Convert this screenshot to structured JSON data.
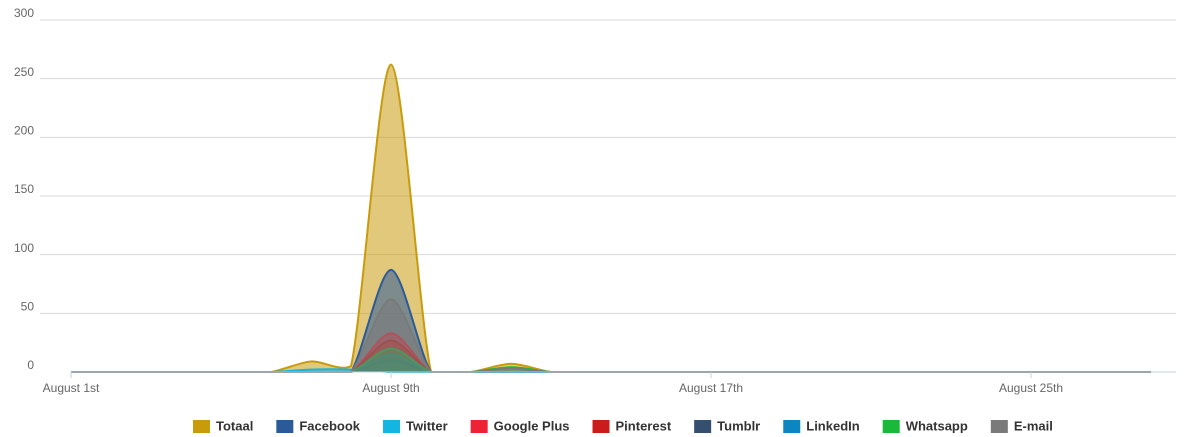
{
  "chart_data": {
    "type": "areaspline",
    "categories": [
      "August 1st",
      null,
      null,
      null,
      null,
      null,
      null,
      null,
      "August 9th",
      null,
      null,
      null,
      null,
      null,
      null,
      null,
      "August 17th",
      null,
      null,
      null,
      null,
      null,
      null,
      null,
      "August 25th",
      null,
      null,
      null
    ],
    "series": [
      {
        "name": "Totaal",
        "color": "#c89b0c",
        "values": [
          0,
          0,
          0,
          0,
          0,
          0,
          9,
          5,
          262,
          0,
          0,
          7,
          0,
          0,
          0,
          0,
          0,
          0,
          0,
          0,
          0,
          0,
          0,
          0,
          0,
          0,
          0,
          0
        ]
      },
      {
        "name": "Facebook",
        "color": "#2b5a9a",
        "values": [
          0,
          0,
          0,
          0,
          0,
          0,
          0,
          0,
          87,
          0,
          0,
          0,
          0,
          0,
          0,
          0,
          0,
          0,
          0,
          0,
          0,
          0,
          0,
          0,
          0,
          0,
          0,
          0
        ]
      },
      {
        "name": "Twitter",
        "color": "#13b6e3",
        "values": [
          0,
          0,
          0,
          0,
          0,
          0,
          2,
          2,
          0,
          0,
          0,
          0,
          0,
          0,
          0,
          0,
          0,
          0,
          0,
          0,
          0,
          0,
          0,
          0,
          0,
          0,
          0,
          0
        ]
      },
      {
        "name": "Google Plus",
        "color": "#ee2235",
        "values": [
          0,
          0,
          0,
          0,
          0,
          0,
          0,
          0,
          33,
          0,
          0,
          0,
          0,
          0,
          0,
          0,
          0,
          0,
          0,
          0,
          0,
          0,
          0,
          0,
          0,
          0,
          0,
          0
        ]
      },
      {
        "name": "Pinterest",
        "color": "#cb1c1c",
        "values": [
          0,
          0,
          0,
          0,
          0,
          0,
          0,
          0,
          27,
          0,
          0,
          0,
          0,
          0,
          0,
          0,
          0,
          0,
          0,
          0,
          0,
          0,
          0,
          0,
          0,
          0,
          0,
          0
        ]
      },
      {
        "name": "Tumblr",
        "color": "#35506e",
        "values": [
          0,
          0,
          0,
          0,
          0,
          0,
          0,
          0,
          10,
          0,
          0,
          0,
          0,
          0,
          0,
          0,
          0,
          0,
          0,
          0,
          0,
          0,
          0,
          0,
          0,
          0,
          0,
          0
        ]
      },
      {
        "name": "LinkedIn",
        "color": "#0b86c0",
        "values": [
          0,
          0,
          0,
          0,
          0,
          0,
          0,
          0,
          15,
          0,
          0,
          0,
          0,
          0,
          0,
          0,
          0,
          0,
          0,
          0,
          0,
          0,
          0,
          0,
          0,
          0,
          0,
          0
        ]
      },
      {
        "name": "Whatsapp",
        "color": "#1ab83b",
        "values": [
          0,
          0,
          0,
          0,
          0,
          0,
          0,
          0,
          20,
          0,
          0,
          4,
          0,
          0,
          0,
          0,
          0,
          0,
          0,
          0,
          0,
          0,
          0,
          0,
          0,
          0,
          0,
          0
        ]
      },
      {
        "name": "E-mail",
        "color": "#7a7a7a",
        "values": [
          0,
          0,
          0,
          0,
          0,
          0,
          0,
          0,
          62,
          0,
          0,
          3,
          0,
          0,
          0,
          0,
          0,
          0,
          0,
          0,
          0,
          0,
          0,
          0,
          0,
          0,
          0,
          0
        ]
      }
    ],
    "ylim": [
      0,
      300
    ],
    "yticks": [
      0,
      50,
      100,
      150,
      200,
      250,
      300
    ],
    "grid": true,
    "legend": "bottom"
  }
}
